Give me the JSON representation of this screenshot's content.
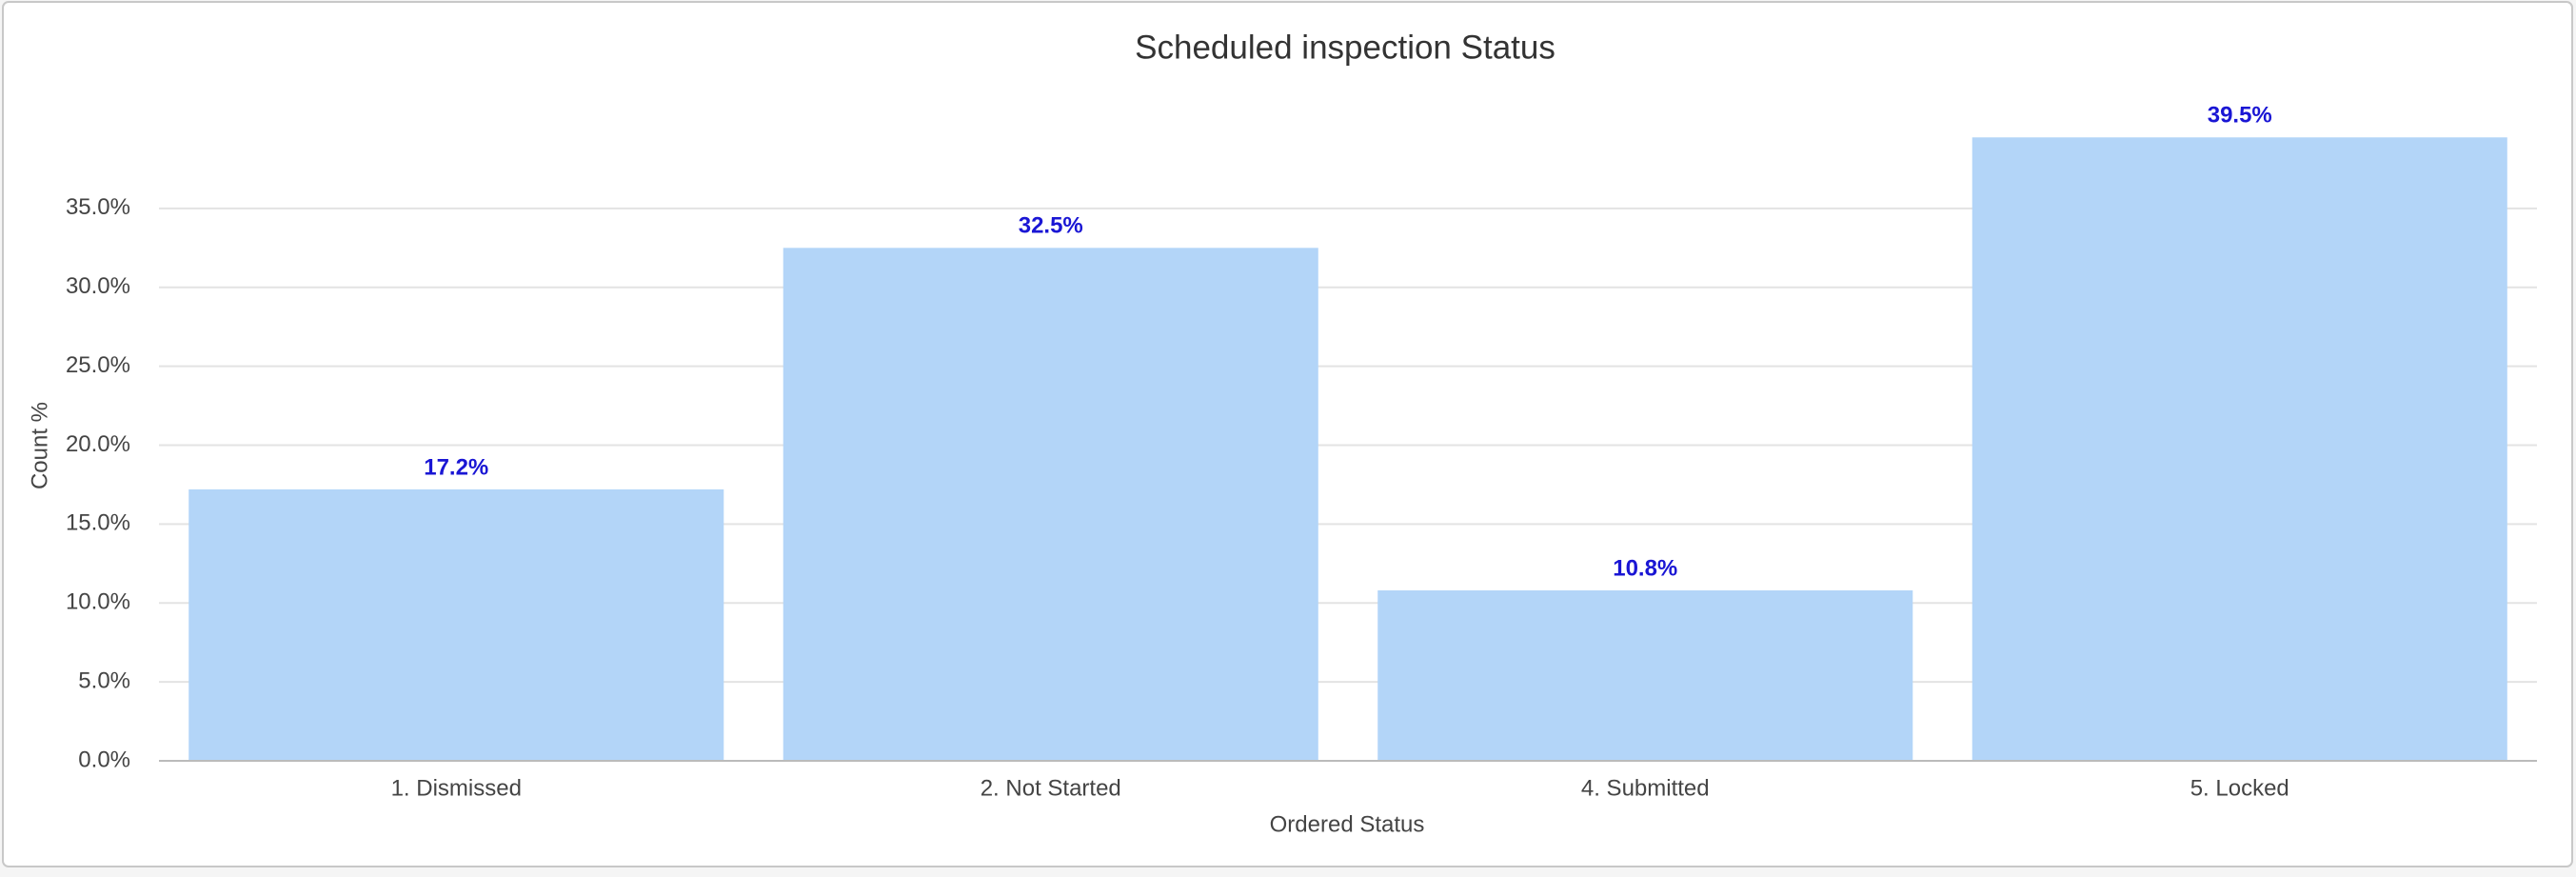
{
  "chart_data": {
    "type": "bar",
    "title": "Scheduled inspection Status",
    "x_label": "Ordered Status",
    "y_label": "Count %",
    "categories": [
      "1. Dismissed",
      "2. Not Started",
      "4. Submitted",
      "5. Locked"
    ],
    "values": [
      17.2,
      32.5,
      10.8,
      39.5
    ],
    "value_labels": [
      "17.2%",
      "32.5%",
      "10.8%",
      "39.5%"
    ],
    "color": "#b3d5f8",
    "ylim": [
      0,
      40
    ],
    "yticks": [
      {
        "value": 0,
        "label": "0.0%"
      },
      {
        "value": 5,
        "label": "5.0%"
      },
      {
        "value": 10,
        "label": "10.0%"
      },
      {
        "value": 15,
        "label": "15.0%"
      },
      {
        "value": 20,
        "label": "20.0%"
      },
      {
        "value": 25,
        "label": "25.0%"
      },
      {
        "value": 30,
        "label": "30.0%"
      },
      {
        "value": 35,
        "label": "35.0%"
      }
    ],
    "grid": true
  }
}
